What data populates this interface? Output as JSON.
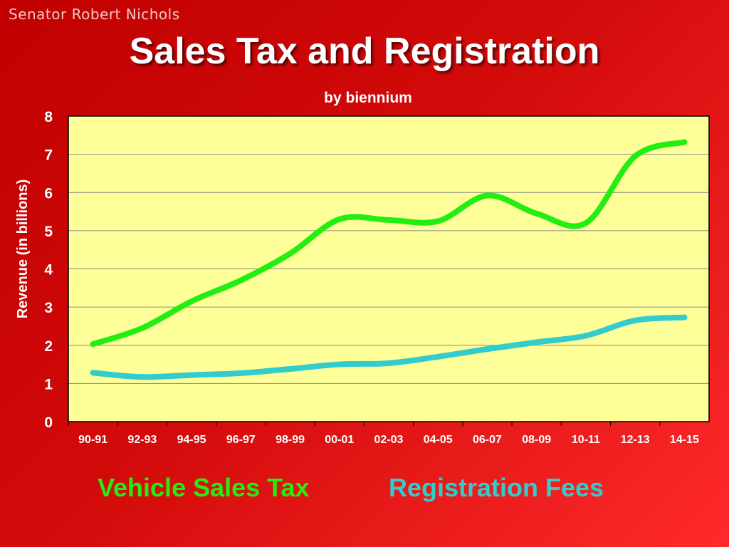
{
  "author": "Senator Robert Nichols",
  "chart_data": {
    "type": "line",
    "title": "Sales Tax and Registration",
    "subtitle": "by biennium",
    "ylabel": "Revenue (in billions)",
    "xlabel": "",
    "ylim": [
      0,
      8
    ],
    "yticks": [
      0,
      1,
      2,
      3,
      4,
      5,
      6,
      7,
      8
    ],
    "grid": true,
    "legend_position": "bottom",
    "plot_background": "#ffff99",
    "categories": [
      "90-91",
      "92-93",
      "94-95",
      "96-97",
      "98-99",
      "00-01",
      "02-03",
      "04-05",
      "06-07",
      "08-09",
      "10-11",
      "12-13",
      "14-15"
    ],
    "series": [
      {
        "name": "Vehicle Sales Tax",
        "color": "#22ee11",
        "values": [
          2.03,
          2.45,
          3.15,
          3.7,
          4.4,
          5.3,
          5.28,
          5.25,
          5.92,
          5.45,
          5.2,
          6.95,
          7.32
        ]
      },
      {
        "name": "Registration Fees",
        "color": "#33cccc",
        "values": [
          1.28,
          1.17,
          1.22,
          1.27,
          1.38,
          1.5,
          1.53,
          1.7,
          1.9,
          2.08,
          2.25,
          2.65,
          2.73
        ]
      }
    ]
  }
}
